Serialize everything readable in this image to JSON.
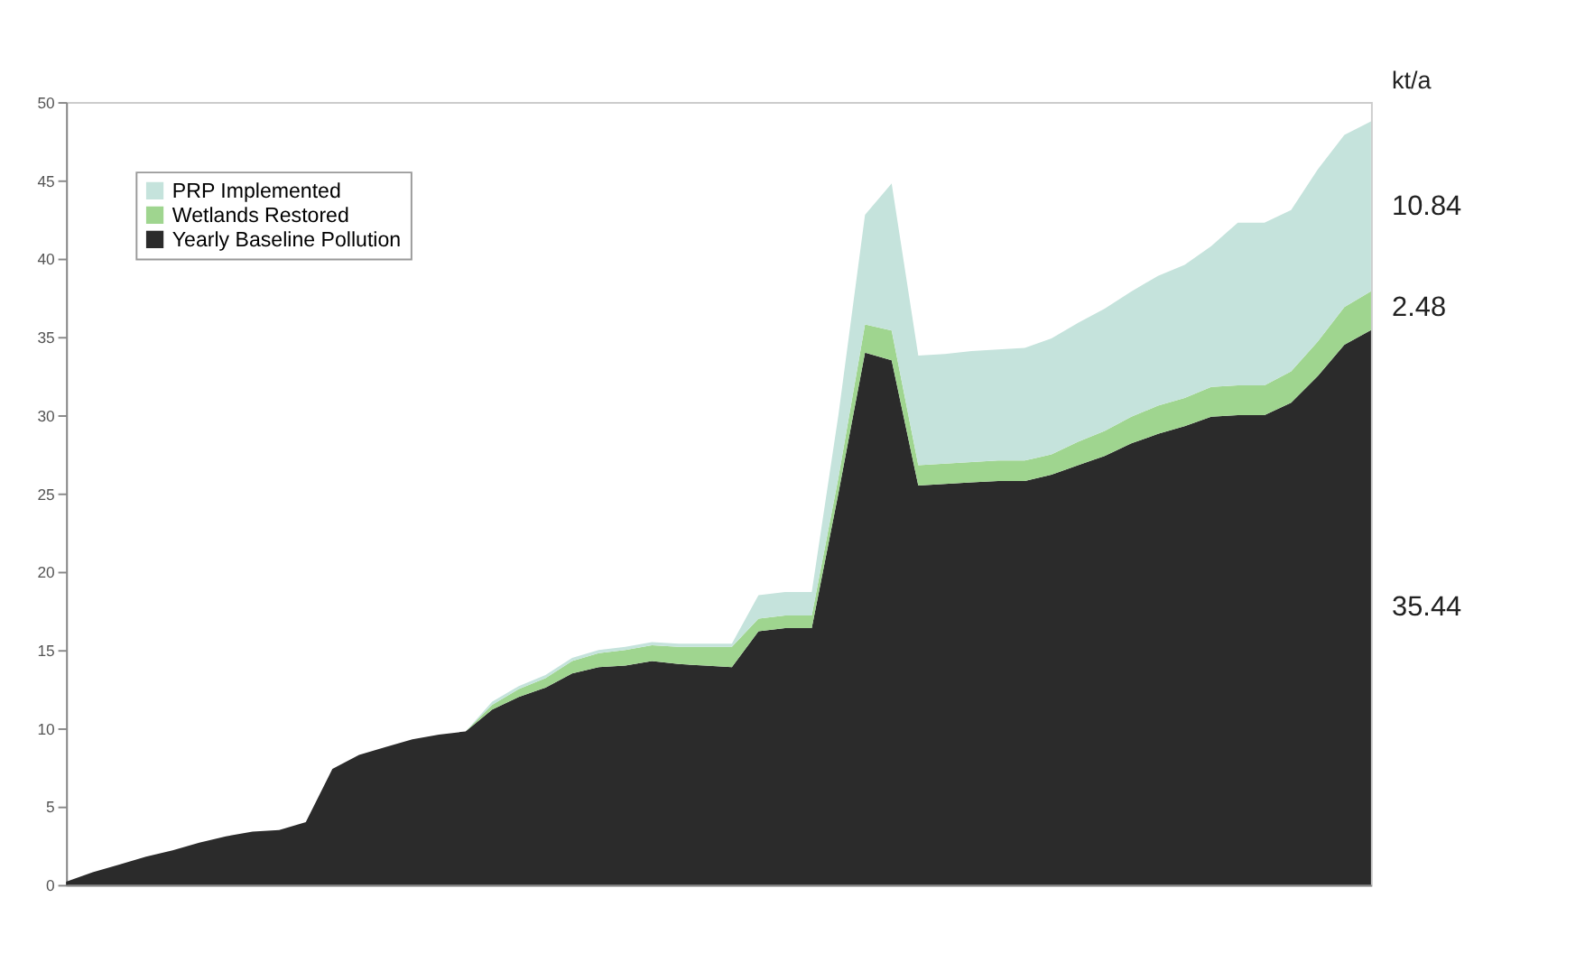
{
  "chart_data": {
    "type": "area",
    "stacked": true,
    "categories": [
      null,
      null,
      null,
      null,
      null,
      null,
      null,
      null,
      null,
      null,
      null,
      null,
      null,
      null,
      null,
      null,
      null,
      null,
      null,
      null,
      null,
      null,
      null,
      null,
      null,
      null,
      null,
      null,
      null,
      null,
      null,
      null,
      null,
      null,
      null,
      null,
      null,
      null,
      null,
      null,
      null,
      null,
      null,
      null,
      null,
      null,
      null,
      null,
      null,
      null
    ],
    "series": [
      {
        "name": "Yearly Baseline Pollution",
        "color": "#2b2b2b",
        "values": [
          0.2,
          0.8,
          1.3,
          1.8,
          2.2,
          2.7,
          3.1,
          3.4,
          3.5,
          4.0,
          7.4,
          8.3,
          8.8,
          9.3,
          9.6,
          9.8,
          11.2,
          12.0,
          12.6,
          13.5,
          13.9,
          14.0,
          14.3,
          14.1,
          14.0,
          13.9,
          16.2,
          16.4,
          16.4,
          25.0,
          34.0,
          33.5,
          25.5,
          25.6,
          25.7,
          25.8,
          25.8,
          26.2,
          26.8,
          27.4,
          28.2,
          28.8,
          29.3,
          29.9,
          30.0,
          30.0,
          30.8,
          32.5,
          34.5,
          35.44
        ]
      },
      {
        "name": "Wetlands Restored",
        "color": "#9fd58f",
        "values": [
          0,
          0,
          0,
          0,
          0,
          0,
          0,
          0,
          0,
          0,
          0,
          0,
          0,
          0,
          0,
          0,
          0.3,
          0.5,
          0.6,
          0.8,
          0.9,
          1.0,
          1.0,
          1.1,
          1.2,
          1.3,
          0.8,
          0.8,
          0.8,
          1.0,
          1.8,
          1.9,
          1.3,
          1.3,
          1.3,
          1.3,
          1.3,
          1.3,
          1.5,
          1.6,
          1.7,
          1.8,
          1.8,
          1.9,
          1.9,
          1.9,
          2.0,
          2.2,
          2.4,
          2.48
        ]
      },
      {
        "name": "PRP Implemented",
        "color": "#c5e3dc",
        "values": [
          0,
          0,
          0,
          0,
          0,
          0,
          0,
          0,
          0,
          0,
          0,
          0,
          0,
          0,
          0,
          0,
          0.2,
          0.2,
          0.2,
          0.2,
          0.2,
          0.2,
          0.2,
          0.2,
          0.2,
          0.2,
          1.5,
          1.5,
          1.5,
          4.0,
          7.0,
          9.4,
          7.0,
          7.0,
          7.1,
          7.1,
          7.2,
          7.4,
          7.6,
          7.8,
          8.0,
          8.3,
          8.5,
          9.0,
          10.4,
          10.4,
          10.3,
          11.0,
          11.0,
          10.84
        ]
      }
    ],
    "ylim": [
      0,
      50
    ],
    "yticks": [
      0,
      5,
      10,
      15,
      20,
      25,
      30,
      35,
      40,
      45,
      50
    ],
    "tick_labels": "y",
    "grid": false,
    "legend": "top left",
    "annotations": [
      "kt/a",
      "10.84",
      "2.48",
      "35.44"
    ]
  }
}
